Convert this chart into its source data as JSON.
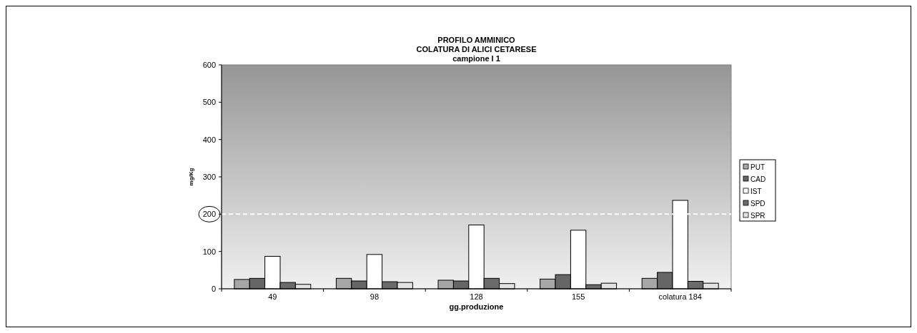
{
  "chart_data": {
    "type": "bar",
    "title": "PROFILO AMMINICO\nCOLATURA DI ALICI CETARESE",
    "subtitle": "campione I 1",
    "xlabel": "gg.produzione",
    "ylabel": "mg/Kg",
    "categories": [
      "49",
      "98",
      "128",
      "155",
      "colatura 184"
    ],
    "series": [
      {
        "name": "PUT",
        "color": "#a6a6a6",
        "values": [
          25,
          28,
          23,
          26,
          28
        ]
      },
      {
        "name": "CAD",
        "color": "#666666",
        "values": [
          28,
          21,
          21,
          38,
          44
        ]
      },
      {
        "name": "IST",
        "color": "#ffffff",
        "values": [
          87,
          92,
          171,
          157,
          237
        ]
      },
      {
        "name": "SPD",
        "color": "#6b6b6b",
        "values": [
          17,
          19,
          28,
          11,
          20
        ]
      },
      {
        "name": "SPR",
        "color": "#e3e3e3",
        "values": [
          12,
          17,
          14,
          15,
          15
        ]
      }
    ],
    "ylim": [
      0,
      600
    ],
    "yticks": [
      0,
      100,
      200,
      300,
      400,
      500,
      600
    ],
    "grid": false,
    "legend": "right",
    "ref_lines": [
      {
        "axis": "y",
        "value": 200,
        "color": "#ffffff",
        "line_style": "dashed"
      }
    ]
  }
}
